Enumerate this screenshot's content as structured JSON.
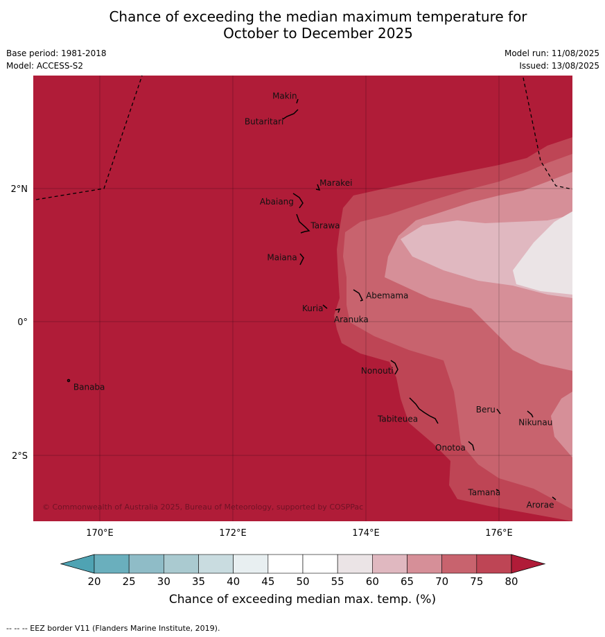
{
  "title_line1": "Chance of exceeding the median maximum temperature for",
  "title_line2": "October to December 2025",
  "base_period": "Base period: 1981-2018",
  "model": "Model: ACCESS-S2",
  "model_run": "Model run: 11/08/2025",
  "issued": "Issued: 13/08/2025",
  "copyright": "© Commonwealth of Australia 2025, Bureau of Meteorology, supported by COSPPac",
  "lat_ticks": [
    "2°N",
    "0°",
    "2°S"
  ],
  "lon_ticks": [
    "170°E",
    "172°E",
    "174°E",
    "176°E"
  ],
  "colorbar": {
    "label": "Chance of exceeding median max. temp. (%)",
    "ticks": [
      "20",
      "25",
      "30",
      "35",
      "40",
      "45",
      "50",
      "55",
      "60",
      "65",
      "70",
      "75",
      "80"
    ],
    "colors": [
      "#6aafbd",
      "#8fbcc7",
      "#aacad0",
      "#c9dce0",
      "#e8eff1",
      "#ffffff",
      "#ffffff",
      "#ebe4e6",
      "#e0b8c0",
      "#d68f98",
      "#c8636e",
      "#be4555"
    ],
    "under_color": "#4fa3b3",
    "over_color": "#b01c38"
  },
  "places": [
    {
      "name": "Makin",
      "lon": 172.78,
      "lat": 3.38
    },
    {
      "name": "Butaritari",
      "lon": 172.47,
      "lat": 3.0
    },
    {
      "name": "Marakei",
      "lon": 173.55,
      "lat": 2.08
    },
    {
      "name": "Abaiang",
      "lon": 172.66,
      "lat": 1.8
    },
    {
      "name": "Tarawa",
      "lon": 173.39,
      "lat": 1.44
    },
    {
      "name": "Maiana",
      "lon": 172.74,
      "lat": 0.96
    },
    {
      "name": "Abemama",
      "lon": 174.32,
      "lat": 0.39
    },
    {
      "name": "Kuria",
      "lon": 173.2,
      "lat": 0.2
    },
    {
      "name": "Aranuka",
      "lon": 173.78,
      "lat": 0.03
    },
    {
      "name": "Nonouti",
      "lon": 174.17,
      "lat": -0.74
    },
    {
      "name": "Banaba",
      "lon": 169.84,
      "lat": -0.98
    },
    {
      "name": "Beru",
      "lon": 175.8,
      "lat": -1.32
    },
    {
      "name": "Nikunau",
      "lon": 176.55,
      "lat": -1.51
    },
    {
      "name": "Tabiteuea",
      "lon": 174.48,
      "lat": -1.46
    },
    {
      "name": "Onotoa",
      "lon": 175.27,
      "lat": -1.89
    },
    {
      "name": "Tamana",
      "lon": 175.78,
      "lat": -2.56
    },
    {
      "name": "Arorae",
      "lon": 176.62,
      "lat": -2.75
    }
  ],
  "footer": "--  --  -- EEZ border V11 (Flanders Marine Institute, 2019)."
}
